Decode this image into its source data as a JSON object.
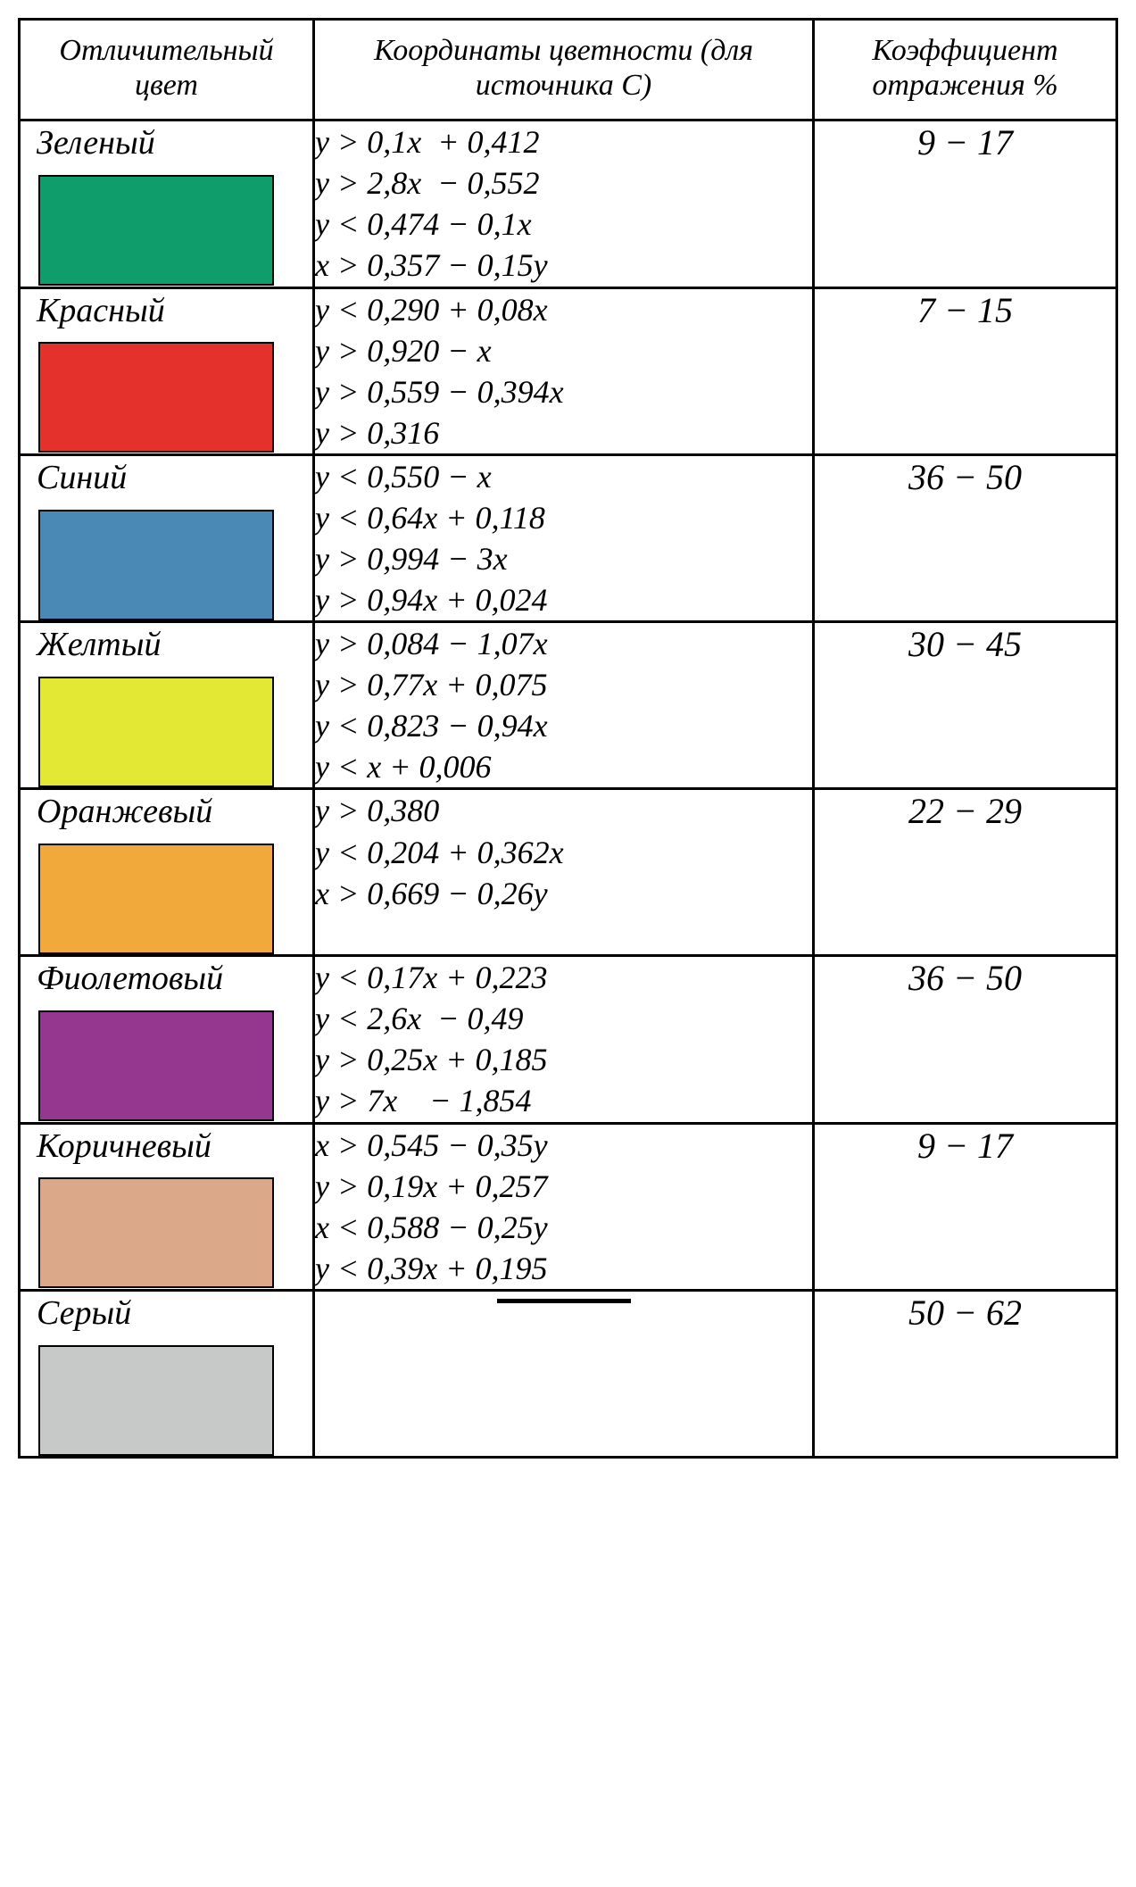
{
  "headers": {
    "color": "Отличительный\nцвет",
    "formula": "Координаты цветности\n(для источника С)",
    "coef": "Коэффициент\nотражения\n%"
  },
  "rows": [
    {
      "name": "Зеленый",
      "swatch": "#0f9e6b",
      "formulas": "y > 0,1x  + 0,412\ny > 2,8x  − 0,552\ny < 0,474 − 0,1x\nx > 0,357 − 0,15y",
      "coef": "9 − 17"
    },
    {
      "name": "Красный",
      "swatch": "#e4312b",
      "formulas": "y < 0,290 + 0,08x\ny > 0,920 − x\ny > 0,559 − 0,394x\ny > 0,316",
      "coef": "7 − 15"
    },
    {
      "name": "Синий",
      "swatch": "#4a88b6",
      "formulas": "y < 0,550 − x\ny < 0,64x + 0,118\ny > 0,994 − 3x\ny > 0,94x + 0,024",
      "coef": "36 − 50"
    },
    {
      "name": "Желтый",
      "swatch": "#e3e835",
      "formulas": "y > 0,084 − 1,07x\ny > 0,77x + 0,075\ny < 0,823 − 0,94x\ny < x + 0,006",
      "coef": "30 − 45"
    },
    {
      "name": "Оранжевый",
      "swatch": "#f0a93a",
      "formulas": "y > 0,380\ny < 0,204 + 0,362x\nx > 0,669 − 0,26y",
      "coef": "22 − 29"
    },
    {
      "name": "Фиолетовый",
      "swatch": "#95378e",
      "formulas": "y < 0,17x + 0,223\ny < 2,6x  − 0,49\ny > 0,25x + 0,185\ny > 7x    − 1,854",
      "coef": "36 − 50"
    },
    {
      "name": "Коричневый",
      "swatch": "#dba88a",
      "formulas": "x > 0,545 − 0,35y\ny > 0,19x + 0,257\nx < 0,588 − 0,25y\ny < 0,39x + 0,195",
      "coef": "9 − 17"
    },
    {
      "name": "Серый",
      "swatch": "#c7c9c8",
      "formulas": "",
      "coef": "50 − 62"
    }
  ]
}
